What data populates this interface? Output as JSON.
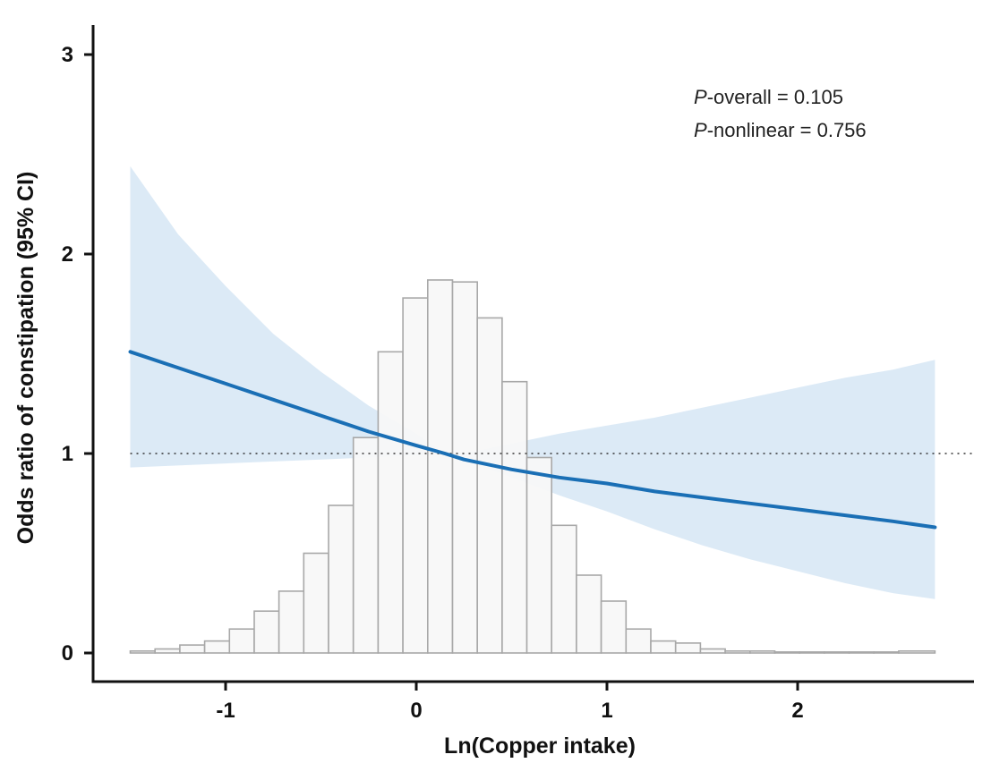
{
  "chart_data": {
    "type": "line",
    "xlabel": "Ln(Copper intake)",
    "ylabel": "Odds ratio of constipation (95% CI)",
    "xlim": [
      -1.7,
      3.0
    ],
    "ylim": [
      -0.15,
      3.2
    ],
    "x_ticks": [
      -1,
      0,
      1,
      2
    ],
    "y_ticks": [
      0,
      1,
      2,
      3
    ],
    "reference_line": 1,
    "annotations": [
      {
        "prefix": "P",
        "text": "-overall = 0.105"
      },
      {
        "prefix": "P",
        "text": "-nonlinear = 0.756"
      }
    ],
    "series": [
      {
        "kind": "spline",
        "color": "#1a6fb5",
        "x": [
          -1.5,
          -1.25,
          -1.0,
          -0.75,
          -0.5,
          -0.25,
          0.0,
          0.15,
          0.25,
          0.5,
          0.75,
          1.0,
          1.25,
          1.5,
          1.75,
          2.0,
          2.25,
          2.5,
          2.72
        ],
        "y": [
          1.51,
          1.43,
          1.35,
          1.27,
          1.19,
          1.11,
          1.04,
          1.0,
          0.97,
          0.92,
          0.88,
          0.85,
          0.81,
          0.78,
          0.75,
          0.72,
          0.69,
          0.66,
          0.63
        ]
      }
    ],
    "ci_band": {
      "color": "#d6e6f5",
      "x": [
        -1.5,
        -1.25,
        -1.0,
        -0.75,
        -0.5,
        -0.25,
        0.0,
        0.15,
        0.25,
        0.5,
        0.75,
        1.0,
        1.25,
        1.5,
        1.75,
        2.0,
        2.25,
        2.5,
        2.72
      ],
      "lower": [
        0.93,
        0.94,
        0.95,
        0.96,
        0.97,
        0.98,
        0.99,
        1.0,
        0.97,
        0.88,
        0.79,
        0.71,
        0.62,
        0.54,
        0.47,
        0.41,
        0.35,
        0.3,
        0.27
      ],
      "upper": [
        2.44,
        2.1,
        1.84,
        1.6,
        1.41,
        1.24,
        1.1,
        1.0,
        1.0,
        1.05,
        1.1,
        1.14,
        1.18,
        1.23,
        1.28,
        1.33,
        1.38,
        1.42,
        1.47
      ]
    },
    "histogram": {
      "fill": "#f7f7f7",
      "stroke": "#a8a8a8",
      "bin_edges": [
        -1.5,
        -1.37,
        -1.24,
        -1.11,
        -0.98,
        -0.85,
        -0.72,
        -0.59,
        -0.46,
        -0.33,
        -0.2,
        -0.07,
        0.06,
        0.19,
        0.32,
        0.45,
        0.58,
        0.71,
        0.84,
        0.97,
        1.1,
        1.23,
        1.36,
        1.49,
        1.62,
        1.75,
        1.88,
        2.01,
        2.14,
        2.27,
        2.4,
        2.53,
        2.72
      ],
      "heights": [
        0.01,
        0.02,
        0.04,
        0.06,
        0.12,
        0.21,
        0.31,
        0.5,
        0.74,
        1.08,
        1.51,
        1.78,
        1.87,
        1.86,
        1.68,
        1.36,
        0.98,
        0.64,
        0.39,
        0.26,
        0.12,
        0.06,
        0.05,
        0.02,
        0.01,
        0.01,
        0.005,
        0.005,
        0.005,
        0.005,
        0.005,
        0.01
      ]
    }
  }
}
